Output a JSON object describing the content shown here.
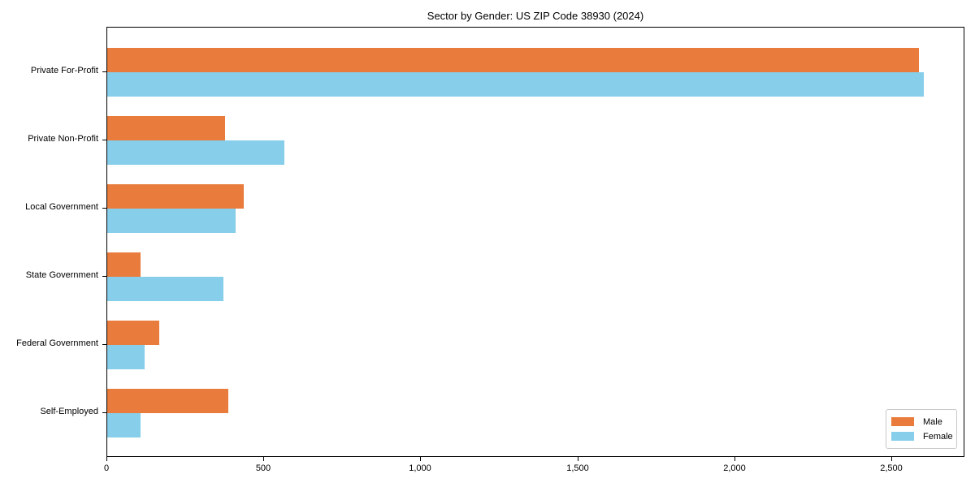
{
  "chart_data": {
    "type": "bar",
    "orientation": "horizontal",
    "title": "Sector by Gender: US ZIP Code 38930 (2024)",
    "xlabel": "",
    "ylabel": "",
    "categories": [
      "Private For-Profit",
      "Private Non-Profit",
      "Local Government",
      "State Government",
      "Federal Government",
      "Self-Employed"
    ],
    "series": [
      {
        "name": "Male",
        "color": "#E97C3C",
        "values": [
          2585,
          375,
          435,
          105,
          165,
          385
        ]
      },
      {
        "name": "Female",
        "color": "#87CEEB",
        "values": [
          2600,
          565,
          410,
          370,
          120,
          105
        ]
      }
    ],
    "xlim": [
      0,
      2733
    ],
    "xticks": [
      0,
      500,
      1000,
      1500,
      2000,
      2500
    ],
    "xtick_labels": [
      "0",
      "500",
      "1,000",
      "1,500",
      "2,000",
      "2,500"
    ],
    "grid": false,
    "legend": {
      "position": "lower right",
      "entries": [
        "Male",
        "Female"
      ]
    },
    "colors": {
      "background": "#FFFFFF",
      "axis": "#000000",
      "legend_border": "#C8C8C8"
    }
  }
}
